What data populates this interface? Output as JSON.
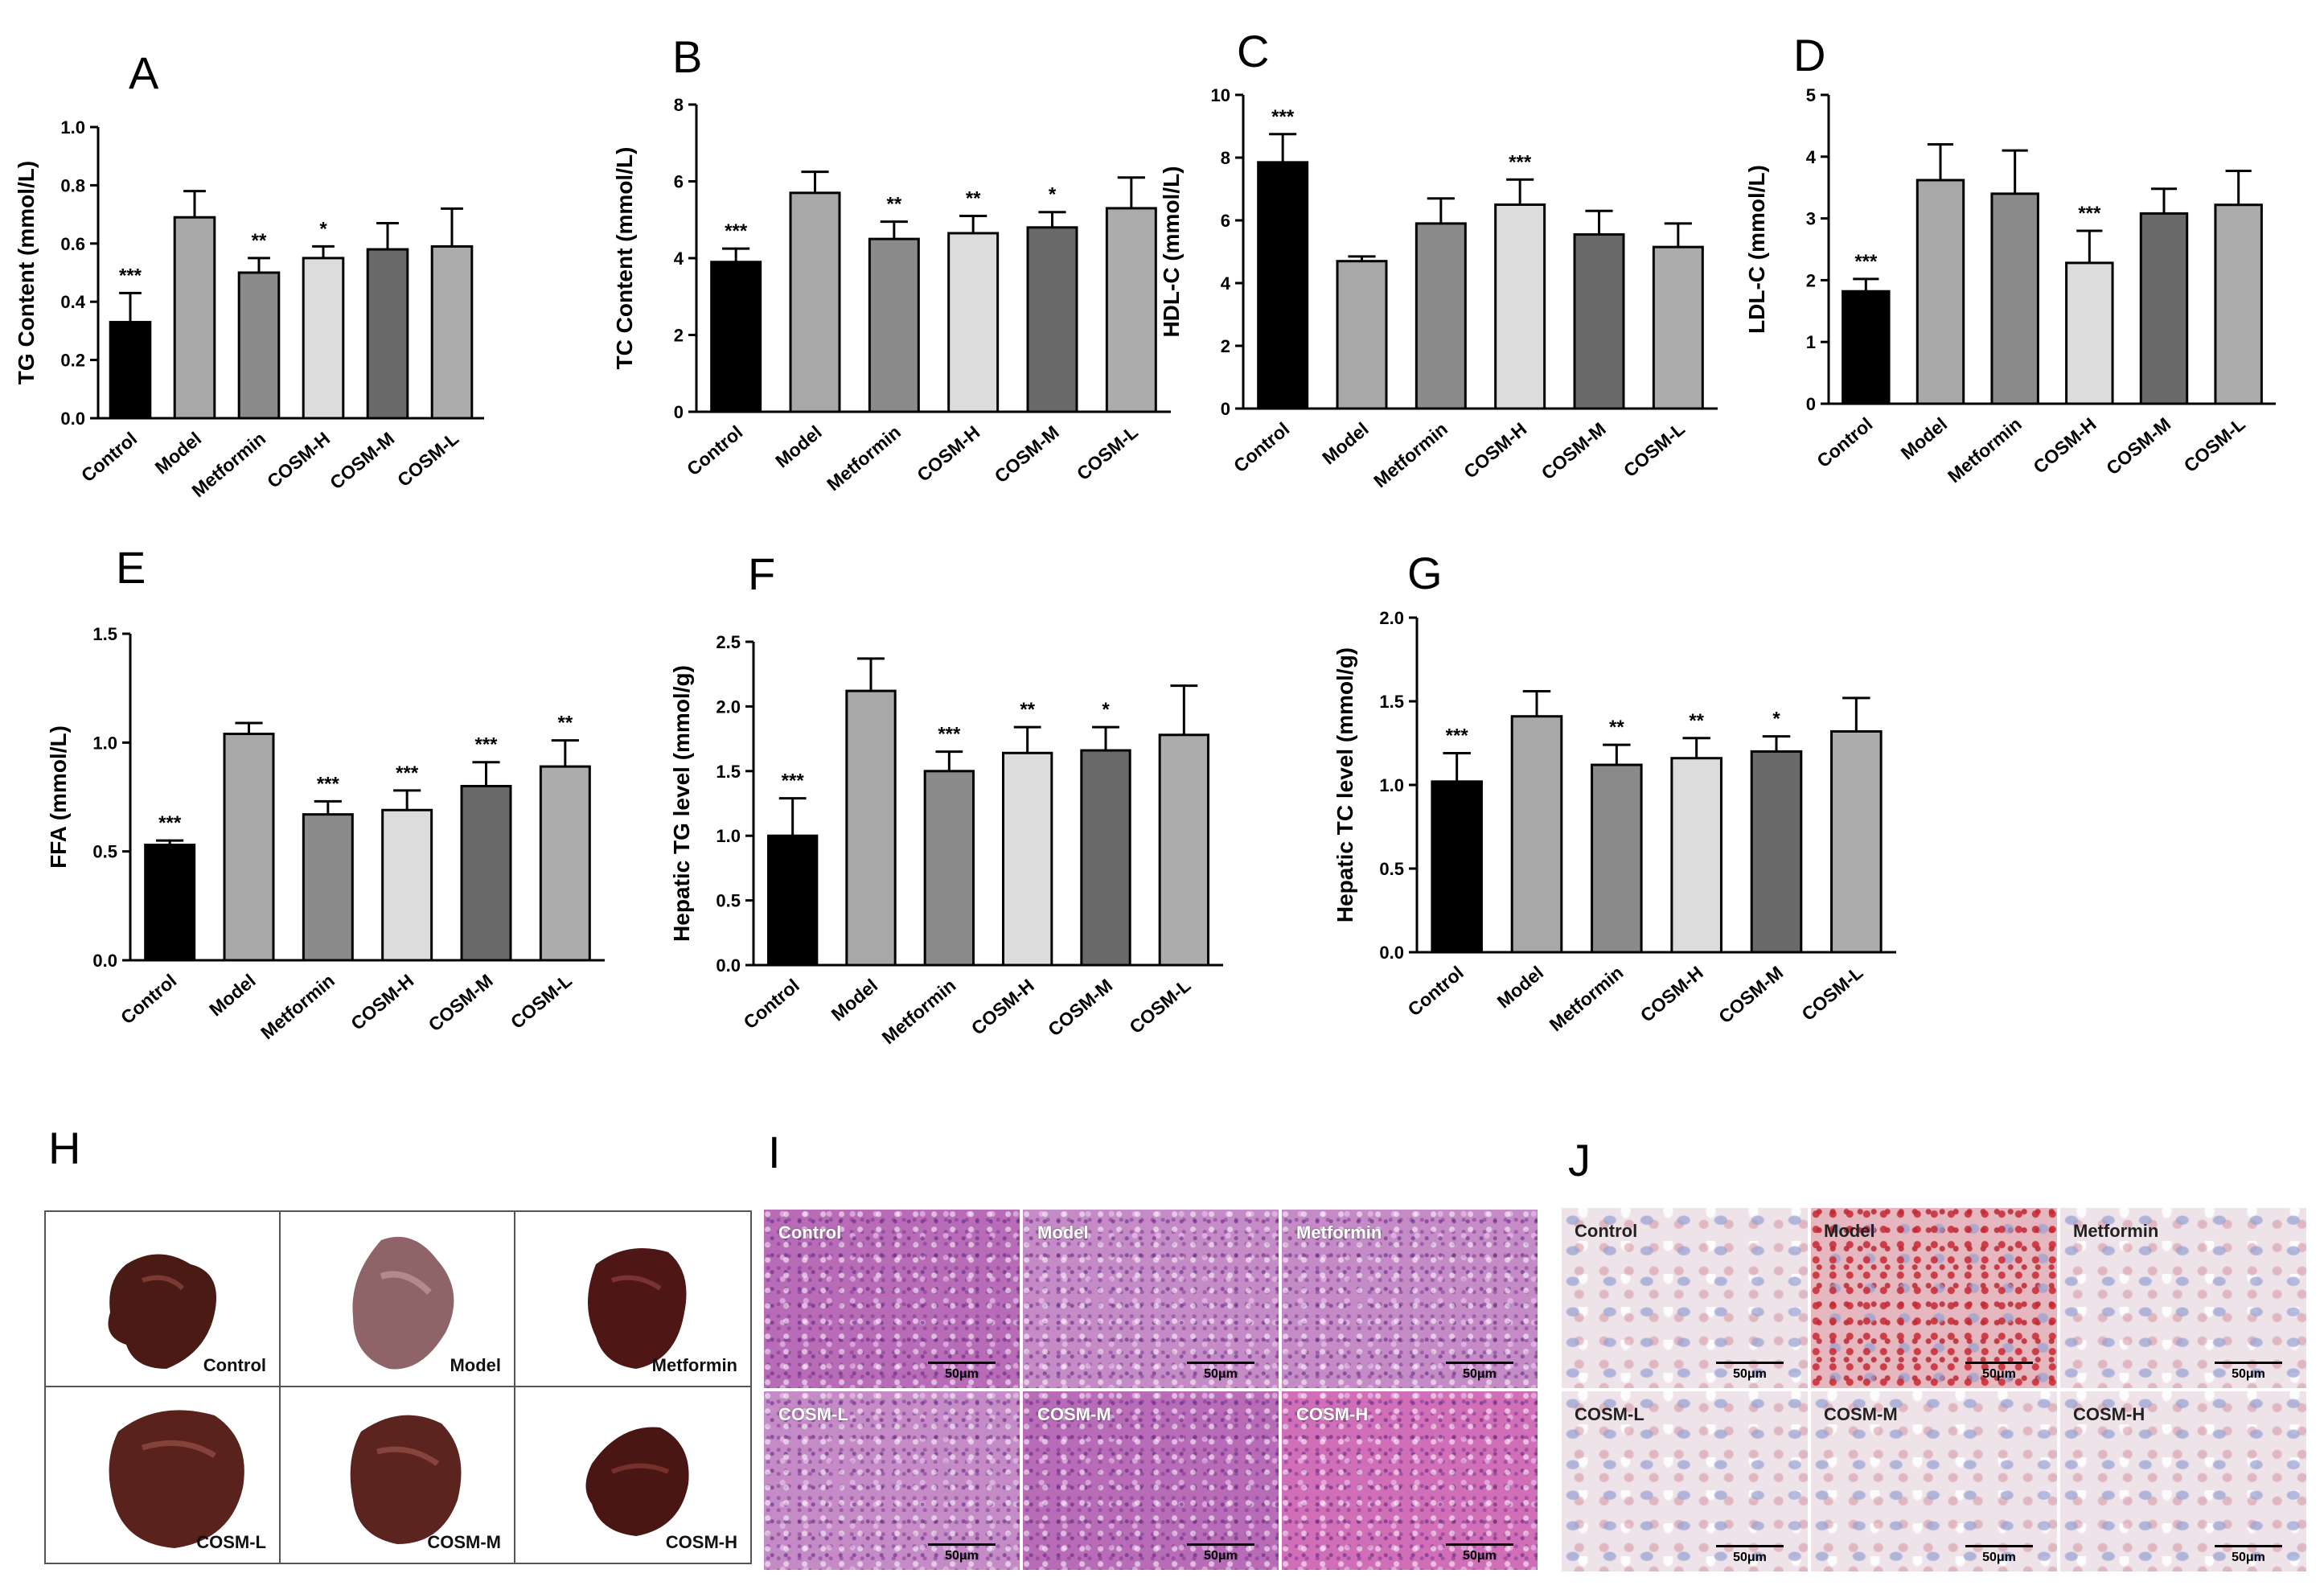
{
  "chart_data": [
    {
      "panel": "A",
      "type": "bar",
      "ylabel": "TG Content (mmol/L)",
      "ylim": [
        0,
        1.0
      ],
      "ticks": [
        "0.0",
        "0.2",
        "0.4",
        "0.6",
        "0.8",
        "1.0"
      ],
      "categories": [
        "Control",
        "Model",
        "Metformin",
        "COSM-H",
        "COSM-M",
        "COSM-L"
      ],
      "values": [
        0.33,
        0.69,
        0.5,
        0.55,
        0.58,
        0.59
      ],
      "errors": [
        0.1,
        0.09,
        0.05,
        0.04,
        0.09,
        0.13
      ],
      "significance": [
        "***",
        "",
        "**",
        "*",
        "",
        ""
      ]
    },
    {
      "panel": "B",
      "type": "bar",
      "ylabel": "TC Content (mmol/L)",
      "ylim": [
        0,
        8
      ],
      "ticks": [
        "0",
        "2",
        "4",
        "6",
        "8"
      ],
      "categories": [
        "Control",
        "Model",
        "Metformin",
        "COSM-H",
        "COSM-M",
        "COSM-L"
      ],
      "values": [
        3.9,
        5.7,
        4.5,
        4.65,
        4.8,
        5.3
      ],
      "errors": [
        0.35,
        0.55,
        0.45,
        0.45,
        0.4,
        0.8
      ],
      "significance": [
        "***",
        "",
        "**",
        "**",
        "*",
        ""
      ]
    },
    {
      "panel": "C",
      "type": "bar",
      "ylabel": "HDL-C (mmol/L)",
      "ylim": [
        0,
        10
      ],
      "ticks": [
        "0",
        "2",
        "4",
        "6",
        "8",
        "10"
      ],
      "categories": [
        "Control",
        "Model",
        "Metformin",
        "COSM-H",
        "COSM-M",
        "COSM-L"
      ],
      "values": [
        7.85,
        4.7,
        5.9,
        6.5,
        5.55,
        5.15
      ],
      "errors": [
        0.9,
        0.15,
        0.8,
        0.8,
        0.75,
        0.75
      ],
      "significance": [
        "***",
        "",
        "",
        "***",
        "",
        ""
      ]
    },
    {
      "panel": "D",
      "type": "bar",
      "ylabel": "LDL-C (mmol/L)",
      "ylim": [
        0,
        5
      ],
      "ticks": [
        "0",
        "1",
        "2",
        "3",
        "4",
        "5"
      ],
      "categories": [
        "Control",
        "Model",
        "Metformin",
        "COSM-H",
        "COSM-M",
        "COSM-L"
      ],
      "values": [
        1.82,
        3.62,
        3.4,
        2.28,
        3.08,
        3.22
      ],
      "errors": [
        0.2,
        0.58,
        0.7,
        0.52,
        0.4,
        0.55
      ],
      "significance": [
        "***",
        "",
        "",
        "***",
        "",
        ""
      ]
    },
    {
      "panel": "E",
      "type": "bar",
      "ylabel": "FFA (mmol/L)",
      "ylim": [
        0,
        1.5
      ],
      "ticks": [
        "0.0",
        "0.5",
        "1.0",
        "1.5"
      ],
      "categories": [
        "Control",
        "Model",
        "Metformin",
        "COSM-H",
        "COSM-M",
        "COSM-L"
      ],
      "values": [
        0.53,
        1.04,
        0.67,
        0.69,
        0.8,
        0.89
      ],
      "errors": [
        0.02,
        0.05,
        0.06,
        0.09,
        0.11,
        0.12
      ],
      "significance": [
        "***",
        "",
        "***",
        "***",
        "***",
        "**"
      ]
    },
    {
      "panel": "F",
      "type": "bar",
      "ylabel": "Hepatic TG level (mmol/g)",
      "ylim": [
        0,
        2.5
      ],
      "ticks": [
        "0.0",
        "0.5",
        "1.0",
        "1.5",
        "2.0",
        "2.5"
      ],
      "categories": [
        "Control",
        "Model",
        "Metformin",
        "COSM-H",
        "COSM-M",
        "COSM-L"
      ],
      "values": [
        1.0,
        2.12,
        1.5,
        1.64,
        1.66,
        1.78
      ],
      "errors": [
        0.29,
        0.25,
        0.15,
        0.2,
        0.18,
        0.38
      ],
      "significance": [
        "***",
        "",
        "***",
        "**",
        "*",
        ""
      ]
    },
    {
      "panel": "G",
      "type": "bar",
      "ylabel": "Hepatic TC level (mmol/g)",
      "ylim": [
        0,
        2.0
      ],
      "ticks": [
        "0.0",
        "0.5",
        "1.0",
        "1.5",
        "2.0"
      ],
      "categories": [
        "Control",
        "Model",
        "Metformin",
        "COSM-H",
        "COSM-M",
        "COSM-L"
      ],
      "values": [
        1.02,
        1.41,
        1.12,
        1.16,
        1.2,
        1.32
      ],
      "errors": [
        0.17,
        0.15,
        0.12,
        0.12,
        0.09,
        0.2
      ],
      "significance": [
        "***",
        "",
        "**",
        "**",
        "*",
        ""
      ]
    }
  ],
  "bar_colors": [
    "#000000",
    "#a8a8a8",
    "#8a8a8a",
    "#dcdcdc",
    "#6a6a6a",
    "#acacac"
  ],
  "image_panels": {
    "H": {
      "letter": "H",
      "cells": [
        "Control",
        "Model",
        "Metformin",
        "COSM-L",
        "COSM-M",
        "COSM-H"
      ]
    },
    "I": {
      "letter": "I",
      "cells": [
        "Control",
        "Model",
        "Metformin",
        "COSM-L",
        "COSM-M",
        "COSM-H"
      ],
      "scale": "50μm"
    },
    "J": {
      "letter": "J",
      "cells": [
        "Control",
        "Model",
        "Metformin",
        "COSM-L",
        "COSM-M",
        "COSM-H"
      ],
      "scale": "50μm"
    }
  }
}
